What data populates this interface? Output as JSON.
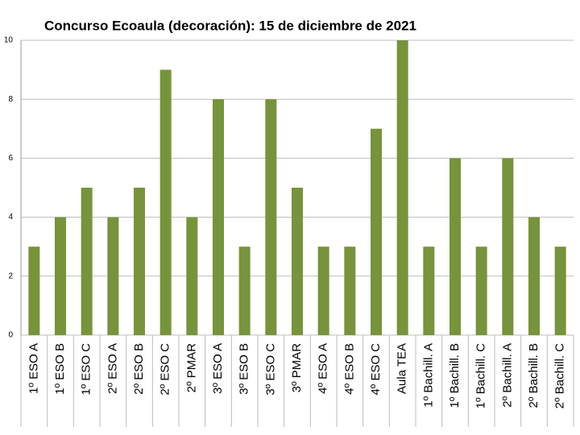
{
  "chart_data": {
    "type": "bar",
    "title": "Concurso Ecoaula (decoración): 15 de diciembre de 2021",
    "categories": [
      "1º ESO A",
      "1º ESO B",
      "1º ESO C",
      "2º ESO A",
      "2º ESO B",
      "2º ESO C",
      "2º PMAR",
      "3º ESO A",
      "3º ESO B",
      "3º ESO C",
      "3º PMAR",
      "4º ESO A",
      "4º ESO B",
      "4º ESO C",
      "Aula TEA",
      "1º Bachill. A",
      "1º Bachill. B",
      "1º Bachill. C",
      "2º Bachill. A",
      "2º Bachill. B",
      "2º Bachill. C"
    ],
    "values": [
      3,
      4,
      5,
      4,
      5,
      9,
      4,
      8,
      3,
      8,
      5,
      3,
      3,
      7,
      10,
      3,
      6,
      3,
      6,
      4,
      3
    ],
    "color": "#77933c",
    "ylim": [
      0,
      10
    ],
    "yticks": [
      0,
      2,
      4,
      6,
      8,
      10
    ],
    "grid": true
  }
}
